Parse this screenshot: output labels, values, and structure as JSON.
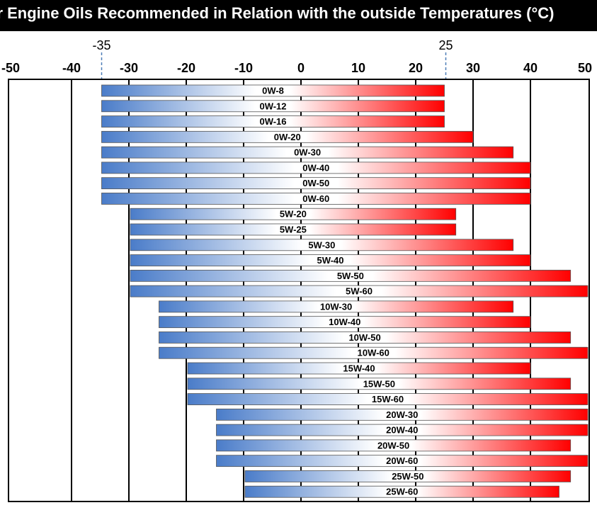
{
  "chart_data": {
    "type": "bar",
    "orientation": "horizontal-range",
    "title": "or Engine Oils Recommended in Relation with the outside Temperatures  (°C)",
    "xlabel": "",
    "ylabel": "",
    "xlim": [
      -50,
      50
    ],
    "x_ticks": [
      -50,
      -40,
      -30,
      -20,
      -10,
      0,
      10,
      20,
      30,
      40,
      50
    ],
    "reference_lines": [
      -35,
      25
    ],
    "grid": true,
    "colors": {
      "cold": "#4a7cc9",
      "hot": "#ff0000",
      "mid": "#ffffff",
      "title_bg": "#000000",
      "reference": "#4f7fb8"
    },
    "series": [
      {
        "name": "0W-8",
        "min": -35,
        "max": 25
      },
      {
        "name": "0W-12",
        "min": -35,
        "max": 25
      },
      {
        "name": "0W-16",
        "min": -35,
        "max": 25
      },
      {
        "name": "0W-20",
        "min": -35,
        "max": 30
      },
      {
        "name": "0W-30",
        "min": -35,
        "max": 37
      },
      {
        "name": "0W-40",
        "min": -35,
        "max": 40
      },
      {
        "name": "0W-50",
        "min": -35,
        "max": 40
      },
      {
        "name": "0W-60",
        "min": -35,
        "max": 40
      },
      {
        "name": "5W-20",
        "min": -30,
        "max": 27
      },
      {
        "name": "5W-25",
        "min": -30,
        "max": 27
      },
      {
        "name": "5W-30",
        "min": -30,
        "max": 37
      },
      {
        "name": "5W-40",
        "min": -30,
        "max": 40
      },
      {
        "name": "5W-50",
        "min": -30,
        "max": 47
      },
      {
        "name": "5W-60",
        "min": -30,
        "max": 50
      },
      {
        "name": "10W-30",
        "min": -25,
        "max": 37
      },
      {
        "name": "10W-40",
        "min": -25,
        "max": 40
      },
      {
        "name": "10W-50",
        "min": -25,
        "max": 47
      },
      {
        "name": "10W-60",
        "min": -25,
        "max": 50
      },
      {
        "name": "15W-40",
        "min": -20,
        "max": 40
      },
      {
        "name": "15W-50",
        "min": -20,
        "max": 47
      },
      {
        "name": "15W-60",
        "min": -20,
        "max": 50
      },
      {
        "name": "20W-30",
        "min": -15,
        "max": 50
      },
      {
        "name": "20W-40",
        "min": -15,
        "max": 50
      },
      {
        "name": "20W-50",
        "min": -15,
        "max": 47
      },
      {
        "name": "20W-60",
        "min": -15,
        "max": 50
      },
      {
        "name": "25W-50",
        "min": -10,
        "max": 47
      },
      {
        "name": "25W-60",
        "min": -10,
        "max": 45
      }
    ]
  }
}
